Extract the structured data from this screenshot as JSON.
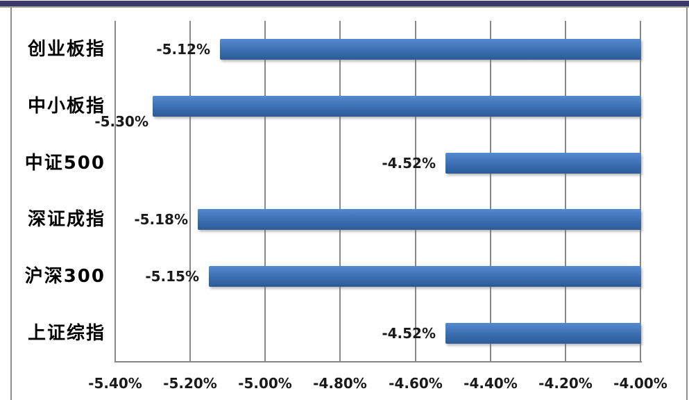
{
  "window": {
    "top_bar_color": "#3a3a6b",
    "top_bar_underline_color": "#9b9b9b",
    "side_border_color": "#8c8c8c",
    "background": "#ffffff"
  },
  "chart_data": {
    "type": "bar",
    "orientation": "horizontal",
    "title": "",
    "xlabel": "",
    "ylabel": "",
    "xlim": [
      -5.4,
      -4.0
    ],
    "bars_extend_to": "axis_max",
    "grid": true,
    "legend": null,
    "gridline_color": "#878787",
    "bar_color_top": "#548bce",
    "bar_color_mid": "#3a6eb1",
    "bar_color_bottom": "#2d5b97",
    "categories": [
      "创业板指",
      "中小板指",
      "中证500",
      "深证成指",
      "沪深300",
      "上证综指"
    ],
    "values": [
      -5.12,
      -5.3,
      -4.52,
      -5.18,
      -5.15,
      -4.52
    ],
    "points": [
      {
        "category": "创业板指",
        "value": -5.12,
        "label": "-5.12%"
      },
      {
        "category": "中小板指",
        "value": -5.3,
        "label": "-5.30%",
        "label_dx": -8,
        "label_dy": 22
      },
      {
        "category": "中证500",
        "value": -4.52,
        "label": "-4.52%"
      },
      {
        "category": "深证成指",
        "value": -5.18,
        "label": "-5.18%"
      },
      {
        "category": "沪深300",
        "value": -5.15,
        "label": "-5.15%"
      },
      {
        "category": "上证综指",
        "value": -4.52,
        "label": "-4.52%"
      }
    ],
    "x_ticks": [
      "-5.40%",
      "-5.20%",
      "-5.00%",
      "-4.80%",
      "-4.60%",
      "-4.40%",
      "-4.20%",
      "-4.00%"
    ]
  }
}
